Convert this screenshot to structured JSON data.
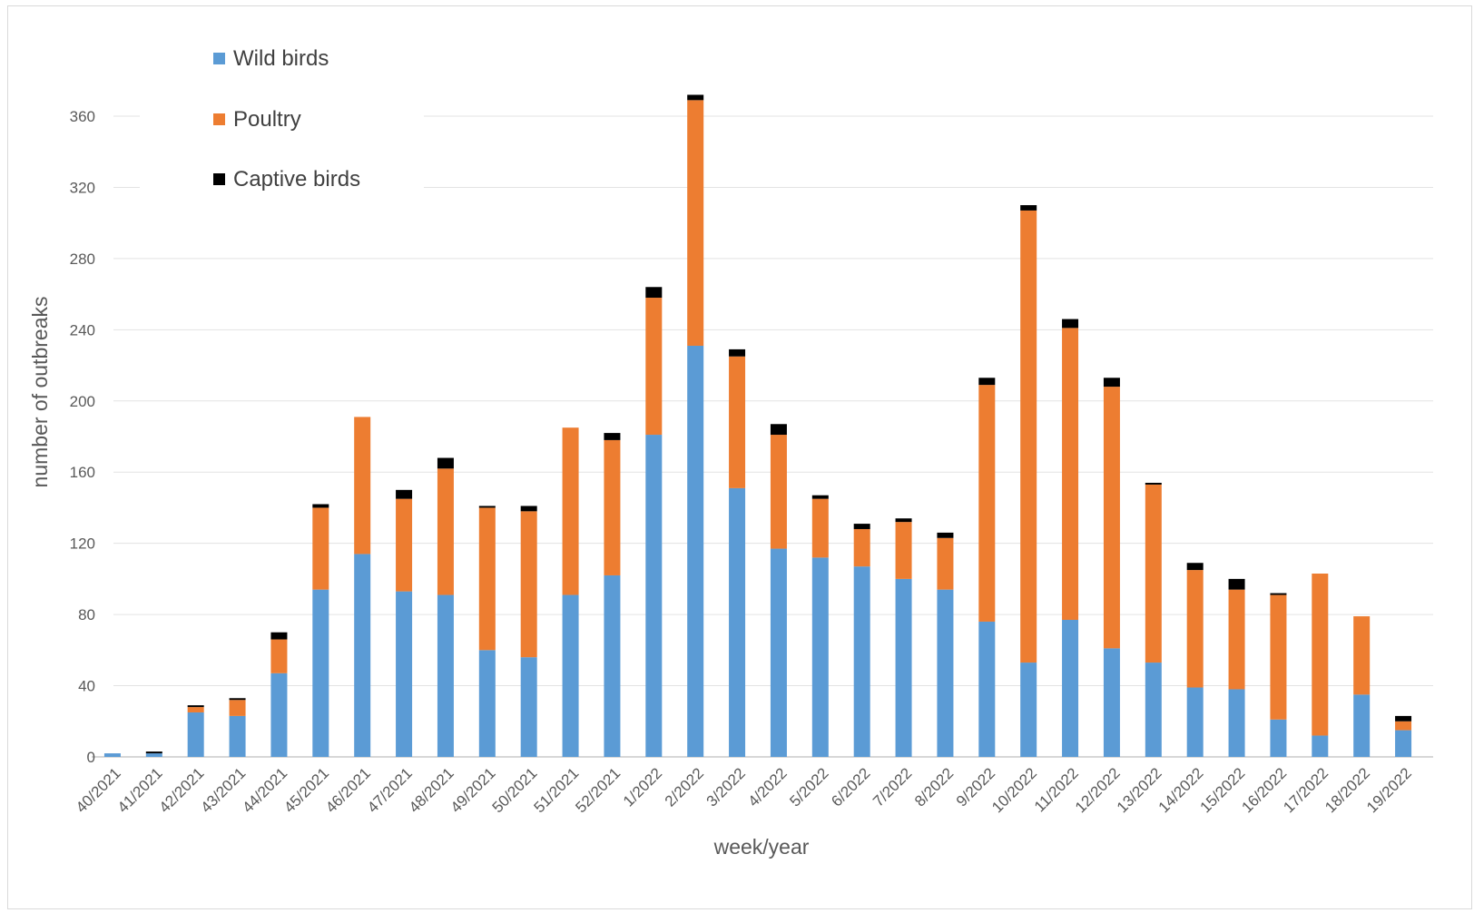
{
  "chart_data": {
    "type": "bar",
    "stacked": true,
    "title": "",
    "xlabel": "week/year",
    "ylabel": "number of outbreaks",
    "ylim": [
      0,
      360
    ],
    "yticks": [
      0,
      40,
      80,
      120,
      160,
      200,
      240,
      280,
      320,
      360
    ],
    "grid": true,
    "legend_position": "top-left",
    "categories": [
      "40/2021",
      "41/2021",
      "42/2021",
      "43/2021",
      "44/2021",
      "45/2021",
      "46/2021",
      "47/2021",
      "48/2021",
      "49/2021",
      "50/2021",
      "51/2021",
      "52/2021",
      "1/2022",
      "2/2022",
      "3/2022",
      "4/2022",
      "5/2022",
      "6/2022",
      "7/2022",
      "8/2022",
      "9/2022",
      "10/2022",
      "11/2022",
      "12/2022",
      "13/2022",
      "14/2022",
      "15/2022",
      "16/2022",
      "17/2022",
      "18/2022",
      "19/2022"
    ],
    "series": [
      {
        "name": "Wild birds",
        "color": "#5B9BD5",
        "values": [
          2,
          2,
          25,
          23,
          47,
          94,
          114,
          93,
          91,
          60,
          56,
          91,
          102,
          181,
          231,
          151,
          117,
          112,
          107,
          100,
          94,
          76,
          53,
          77,
          61,
          53,
          39,
          38,
          21,
          12,
          35,
          15
        ]
      },
      {
        "name": "Poultry",
        "color": "#ED7D31",
        "values": [
          0,
          0,
          3,
          9,
          19,
          46,
          77,
          52,
          71,
          80,
          82,
          94,
          76,
          77,
          138,
          74,
          64,
          33,
          21,
          32,
          29,
          133,
          254,
          164,
          147,
          100,
          66,
          56,
          70,
          91,
          44,
          5
        ]
      },
      {
        "name": "Captive birds",
        "color": "#000000",
        "values": [
          0,
          1,
          1,
          1,
          4,
          2,
          0,
          5,
          6,
          1,
          3,
          0,
          4,
          6,
          3,
          4,
          6,
          2,
          3,
          2,
          3,
          4,
          3,
          5,
          5,
          1,
          4,
          6,
          1,
          0,
          0,
          3
        ]
      }
    ]
  }
}
